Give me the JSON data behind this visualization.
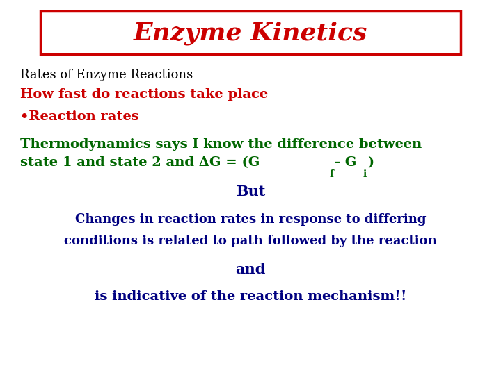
{
  "title": "Enzyme Kinetics",
  "title_color": "#cc0000",
  "title_box_edge_color": "#cc0000",
  "background_color": "#ffffff",
  "line1": "Rates of Enzyme Reactions",
  "line1_color": "#000000",
  "line2": "How fast do reactions take place",
  "line2_color": "#cc0000",
  "line3": "•Reaction rates",
  "line3_color": "#cc0000",
  "line4a": "Thermodynamics says I know the difference between",
  "line4a_color": "#006600",
  "line4b_prefix": "state 1 and state 2 and ΔG = (G",
  "line4b_sub_f": "f",
  "line4b_mid": "- G",
  "line4b_sub_i": "i",
  "line4b_end": ")",
  "line4b_color": "#006600",
  "line5": "But",
  "line5_color": "#000080",
  "line6a": "Changes in reaction rates in response to differing",
  "line6b": "conditions is related to path followed by the reaction",
  "line6_color": "#000080",
  "line7": "and",
  "line7_color": "#000080",
  "line8": "is indicative of the reaction mechanism!!",
  "line8_color": "#000080"
}
